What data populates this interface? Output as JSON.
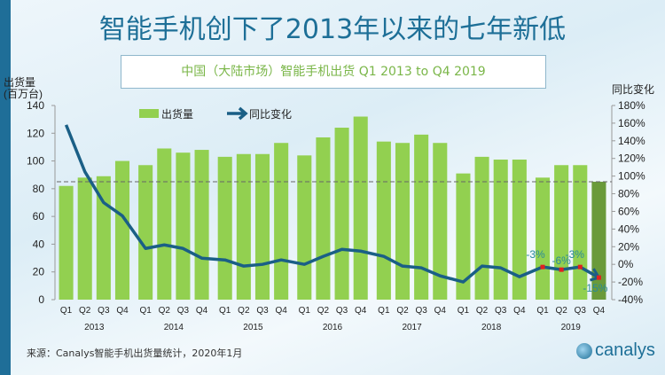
{
  "header": {
    "title": "智能手机创下了2013年以来的七年新低",
    "subtitle": "中国（大陆市场）智能手机出货 Q1 2013 to Q4 2019"
  },
  "footer": {
    "source": "来源：Canalys智能手机出货量统计，2020年1月",
    "logo": "canalys"
  },
  "chart_data": {
    "type": "bar",
    "title": "中国（大陆市场）智能手机出货 Q1 2013 to Q4 2019",
    "ylabel": "出货量 (百万台)",
    "y2label": "同比变化",
    "ylim": [
      0,
      140
    ],
    "y2lim": [
      -40,
      180
    ],
    "yticks": [
      "0",
      "20",
      "40",
      "60",
      "80",
      "100",
      "120",
      "140"
    ],
    "y2ticks": [
      "-40%",
      "-20%",
      "0%",
      "20%",
      "40%",
      "60%",
      "80%",
      "100%",
      "120%",
      "140%",
      "160%",
      "180%"
    ],
    "quarters": [
      "Q1",
      "Q2",
      "Q3",
      "Q4",
      "Q1",
      "Q2",
      "Q3",
      "Q4",
      "Q1",
      "Q2",
      "Q3",
      "Q4",
      "Q1",
      "Q2",
      "Q3",
      "Q4",
      "Q1",
      "Q2",
      "Q3",
      "Q4",
      "Q1",
      "Q2",
      "Q3",
      "Q4",
      "Q1",
      "Q2",
      "Q3",
      "Q4"
    ],
    "years": [
      "2013",
      "2014",
      "2015",
      "2016",
      "2017",
      "2018",
      "2019"
    ],
    "reference_line": 85,
    "legend": [
      "出货量",
      "同比变化"
    ],
    "series": [
      {
        "name": "出货量",
        "type": "bar",
        "color": "#92d050",
        "values": [
          82,
          88,
          89,
          100,
          97,
          109,
          106,
          108,
          103,
          105,
          105,
          113,
          104,
          117,
          124,
          132,
          114,
          113,
          119,
          113,
          91,
          103,
          101,
          101,
          88,
          97,
          97,
          85
        ]
      },
      {
        "name": "同比变化",
        "type": "line",
        "color": "#1a5f86",
        "values": [
          158,
          105,
          70,
          55,
          18,
          22,
          18,
          7,
          5,
          -2,
          0,
          5,
          0,
          9,
          17,
          15,
          9,
          -2,
          -4,
          -13,
          -20,
          -2,
          -4,
          -14,
          -3,
          -6,
          -3,
          -15
        ]
      }
    ],
    "annotations": [
      "-3%",
      "-6%",
      "-3%",
      "-15%"
    ]
  }
}
